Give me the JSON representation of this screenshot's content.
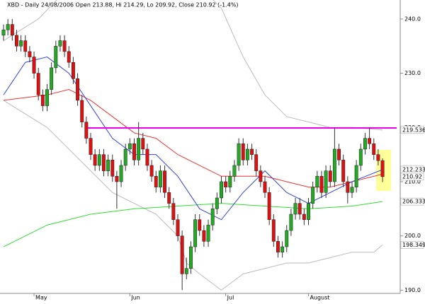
{
  "chart_data": {
    "type": "candlestick",
    "title": "XBD - Daily 24/08/2006 Open 213.88, Hi 214.29, Lo 209.92, Close 210.92 (-1.4%)",
    "categories": [
      null,
      null,
      null,
      null,
      null,
      null,
      null,
      "May",
      null,
      null,
      null,
      null,
      null,
      null,
      null,
      null,
      null,
      null,
      null,
      null,
      null,
      null,
      null,
      null,
      null,
      null,
      null,
      null,
      null,
      "Jun",
      null,
      null,
      null,
      null,
      null,
      null,
      null,
      null,
      null,
      null,
      null,
      null,
      null,
      null,
      null,
      null,
      null,
      null,
      null,
      null,
      null,
      "Jul",
      null,
      null,
      null,
      null,
      null,
      null,
      null,
      null,
      null,
      null,
      null,
      null,
      null,
      null,
      null,
      null,
      null,
      null,
      "August",
      null,
      null,
      null,
      null,
      null,
      null,
      null,
      null,
      null,
      null,
      null,
      null,
      null,
      null,
      null,
      null,
      null
    ],
    "open": [
      237,
      238,
      239,
      237,
      235,
      236,
      234,
      233,
      230,
      226,
      224,
      227,
      231,
      235,
      236,
      234,
      232,
      229,
      225,
      221,
      218,
      215,
      213,
      215,
      212,
      214,
      211,
      210,
      213,
      216,
      217,
      214,
      218,
      216,
      213,
      211,
      209,
      212,
      208,
      206,
      203,
      200,
      193,
      194,
      198,
      203,
      201,
      199,
      202,
      205,
      207,
      210,
      209,
      211,
      213,
      217,
      214,
      216,
      215,
      212,
      210,
      208,
      203,
      199,
      197,
      198,
      201,
      204,
      206,
      204,
      203,
      206,
      209,
      211,
      208,
      212,
      210,
      216,
      214,
      210,
      208,
      209,
      213,
      216,
      218,
      217,
      215,
      213.88
    ],
    "high": [
      239,
      240,
      240,
      238,
      237,
      237,
      235,
      234,
      231,
      227,
      228,
      232,
      236,
      237,
      237,
      235,
      233,
      230,
      226,
      222,
      219,
      216,
      216,
      216,
      215,
      215,
      212,
      214,
      217,
      218,
      218,
      221,
      219,
      217,
      214,
      212,
      213,
      213,
      209,
      207,
      204,
      201,
      196,
      199,
      204,
      204,
      202,
      203,
      206,
      208,
      211,
      211,
      212,
      214,
      218,
      218,
      217,
      217,
      216,
      213,
      211,
      209,
      204,
      200,
      199,
      202,
      205,
      207,
      207,
      205,
      207,
      210,
      212,
      212,
      213,
      213,
      220,
      217,
      215,
      211,
      210,
      214,
      217,
      219,
      220,
      218,
      216,
      214.29
    ],
    "low": [
      236,
      237,
      236,
      234,
      234,
      233,
      232,
      229,
      225,
      223,
      223,
      226,
      230,
      234,
      233,
      231,
      228,
      224,
      220,
      217,
      214,
      212,
      212,
      211,
      211,
      210,
      205,
      209,
      212,
      215,
      213,
      213,
      215,
      212,
      210,
      208,
      208,
      207,
      205,
      202,
      199,
      190,
      192,
      193,
      197,
      200,
      198,
      198,
      201,
      204,
      206,
      208,
      208,
      210,
      212,
      213,
      213,
      214,
      211,
      209,
      207,
      202,
      198,
      196,
      196,
      197,
      200,
      203,
      203,
      202,
      202,
      205,
      208,
      207,
      207,
      209,
      209,
      213,
      209,
      206,
      207,
      208,
      212,
      215,
      216,
      214,
      213,
      209.92
    ],
    "close": [
      238,
      239,
      237,
      235,
      236,
      234,
      233,
      230,
      226,
      224,
      227,
      231,
      235,
      236,
      234,
      232,
      229,
      225,
      221,
      218,
      215,
      213,
      215,
      212,
      214,
      211,
      210,
      213,
      216,
      217,
      214,
      218,
      216,
      213,
      211,
      209,
      212,
      208,
      206,
      203,
      200,
      193,
      194,
      198,
      203,
      201,
      199,
      202,
      205,
      207,
      210,
      209,
      211,
      213,
      217,
      214,
      216,
      215,
      212,
      210,
      208,
      203,
      199,
      197,
      198,
      201,
      204,
      206,
      204,
      203,
      206,
      209,
      211,
      208,
      212,
      210,
      216,
      214,
      210,
      208,
      209,
      213,
      216,
      218,
      217,
      215,
      213.88,
      210.92
    ],
    "up_color": "#22aa22",
    "down_color": "#dd1111",
    "ylim": [
      189.4,
      243.5
    ],
    "yticks": [
      {
        "value": 190,
        "label": "190.0"
      },
      {
        "value": 200,
        "label": "200.0"
      },
      {
        "value": 210,
        "label": "210.0"
      },
      {
        "value": 220,
        "label": "220.0"
      },
      {
        "value": 230,
        "label": "230.0"
      },
      {
        "value": 240,
        "label": "240.0"
      }
    ],
    "overlays": [
      {
        "color": "#bbbbbb",
        "tag": true,
        "x": [
          0,
          8,
          14,
          40,
          50,
          55,
          60,
          65,
          70,
          75,
          80,
          87
        ],
        "values": [
          236,
          240,
          245,
          250,
          242,
          233,
          226,
          222,
          221,
          220,
          220,
          219.536
        ]
      },
      {
        "color": "#bbbbbb",
        "tag": true,
        "x": [
          0,
          10,
          15,
          20,
          25,
          30,
          35,
          40,
          42,
          45,
          50,
          55,
          60,
          65,
          70,
          75,
          80,
          85,
          87
        ],
        "values": [
          225,
          220,
          216,
          212,
          208,
          206,
          204,
          200,
          195,
          193,
          190,
          193,
          194,
          195,
          195,
          196,
          197,
          197,
          198.349
        ]
      },
      {
        "color": "#33dd33",
        "tag": true,
        "x": [
          0,
          10,
          20,
          30,
          40,
          50,
          60,
          70,
          80,
          87
        ],
        "values": [
          198,
          202,
          204,
          205,
          205.5,
          206,
          205.5,
          205,
          205.5,
          206.333
        ]
      },
      {
        "color": "#ee3333",
        "tag": false,
        "x": [
          0,
          10,
          15,
          20,
          25,
          30,
          35,
          40,
          45,
          50,
          55,
          60,
          65,
          70,
          75,
          80,
          87
        ],
        "values": [
          225,
          226,
          227,
          225,
          222,
          219,
          218,
          215,
          213,
          211,
          211,
          211,
          210,
          209,
          209,
          210,
          211.4
        ]
      },
      {
        "color": "#3344dd",
        "tag": true,
        "x": [
          0,
          5,
          10,
          15,
          20,
          25,
          30,
          35,
          40,
          45,
          50,
          55,
          60,
          65,
          70,
          75,
          80,
          87
        ],
        "values": [
          226,
          232,
          233,
          230,
          224,
          218,
          215,
          215,
          211,
          205,
          203,
          208,
          212,
          208,
          206,
          208,
          210,
          212.233
        ]
      }
    ],
    "hline": {
      "value": 219.9,
      "from": 19,
      "color": "#ee00ee"
    }
  }
}
